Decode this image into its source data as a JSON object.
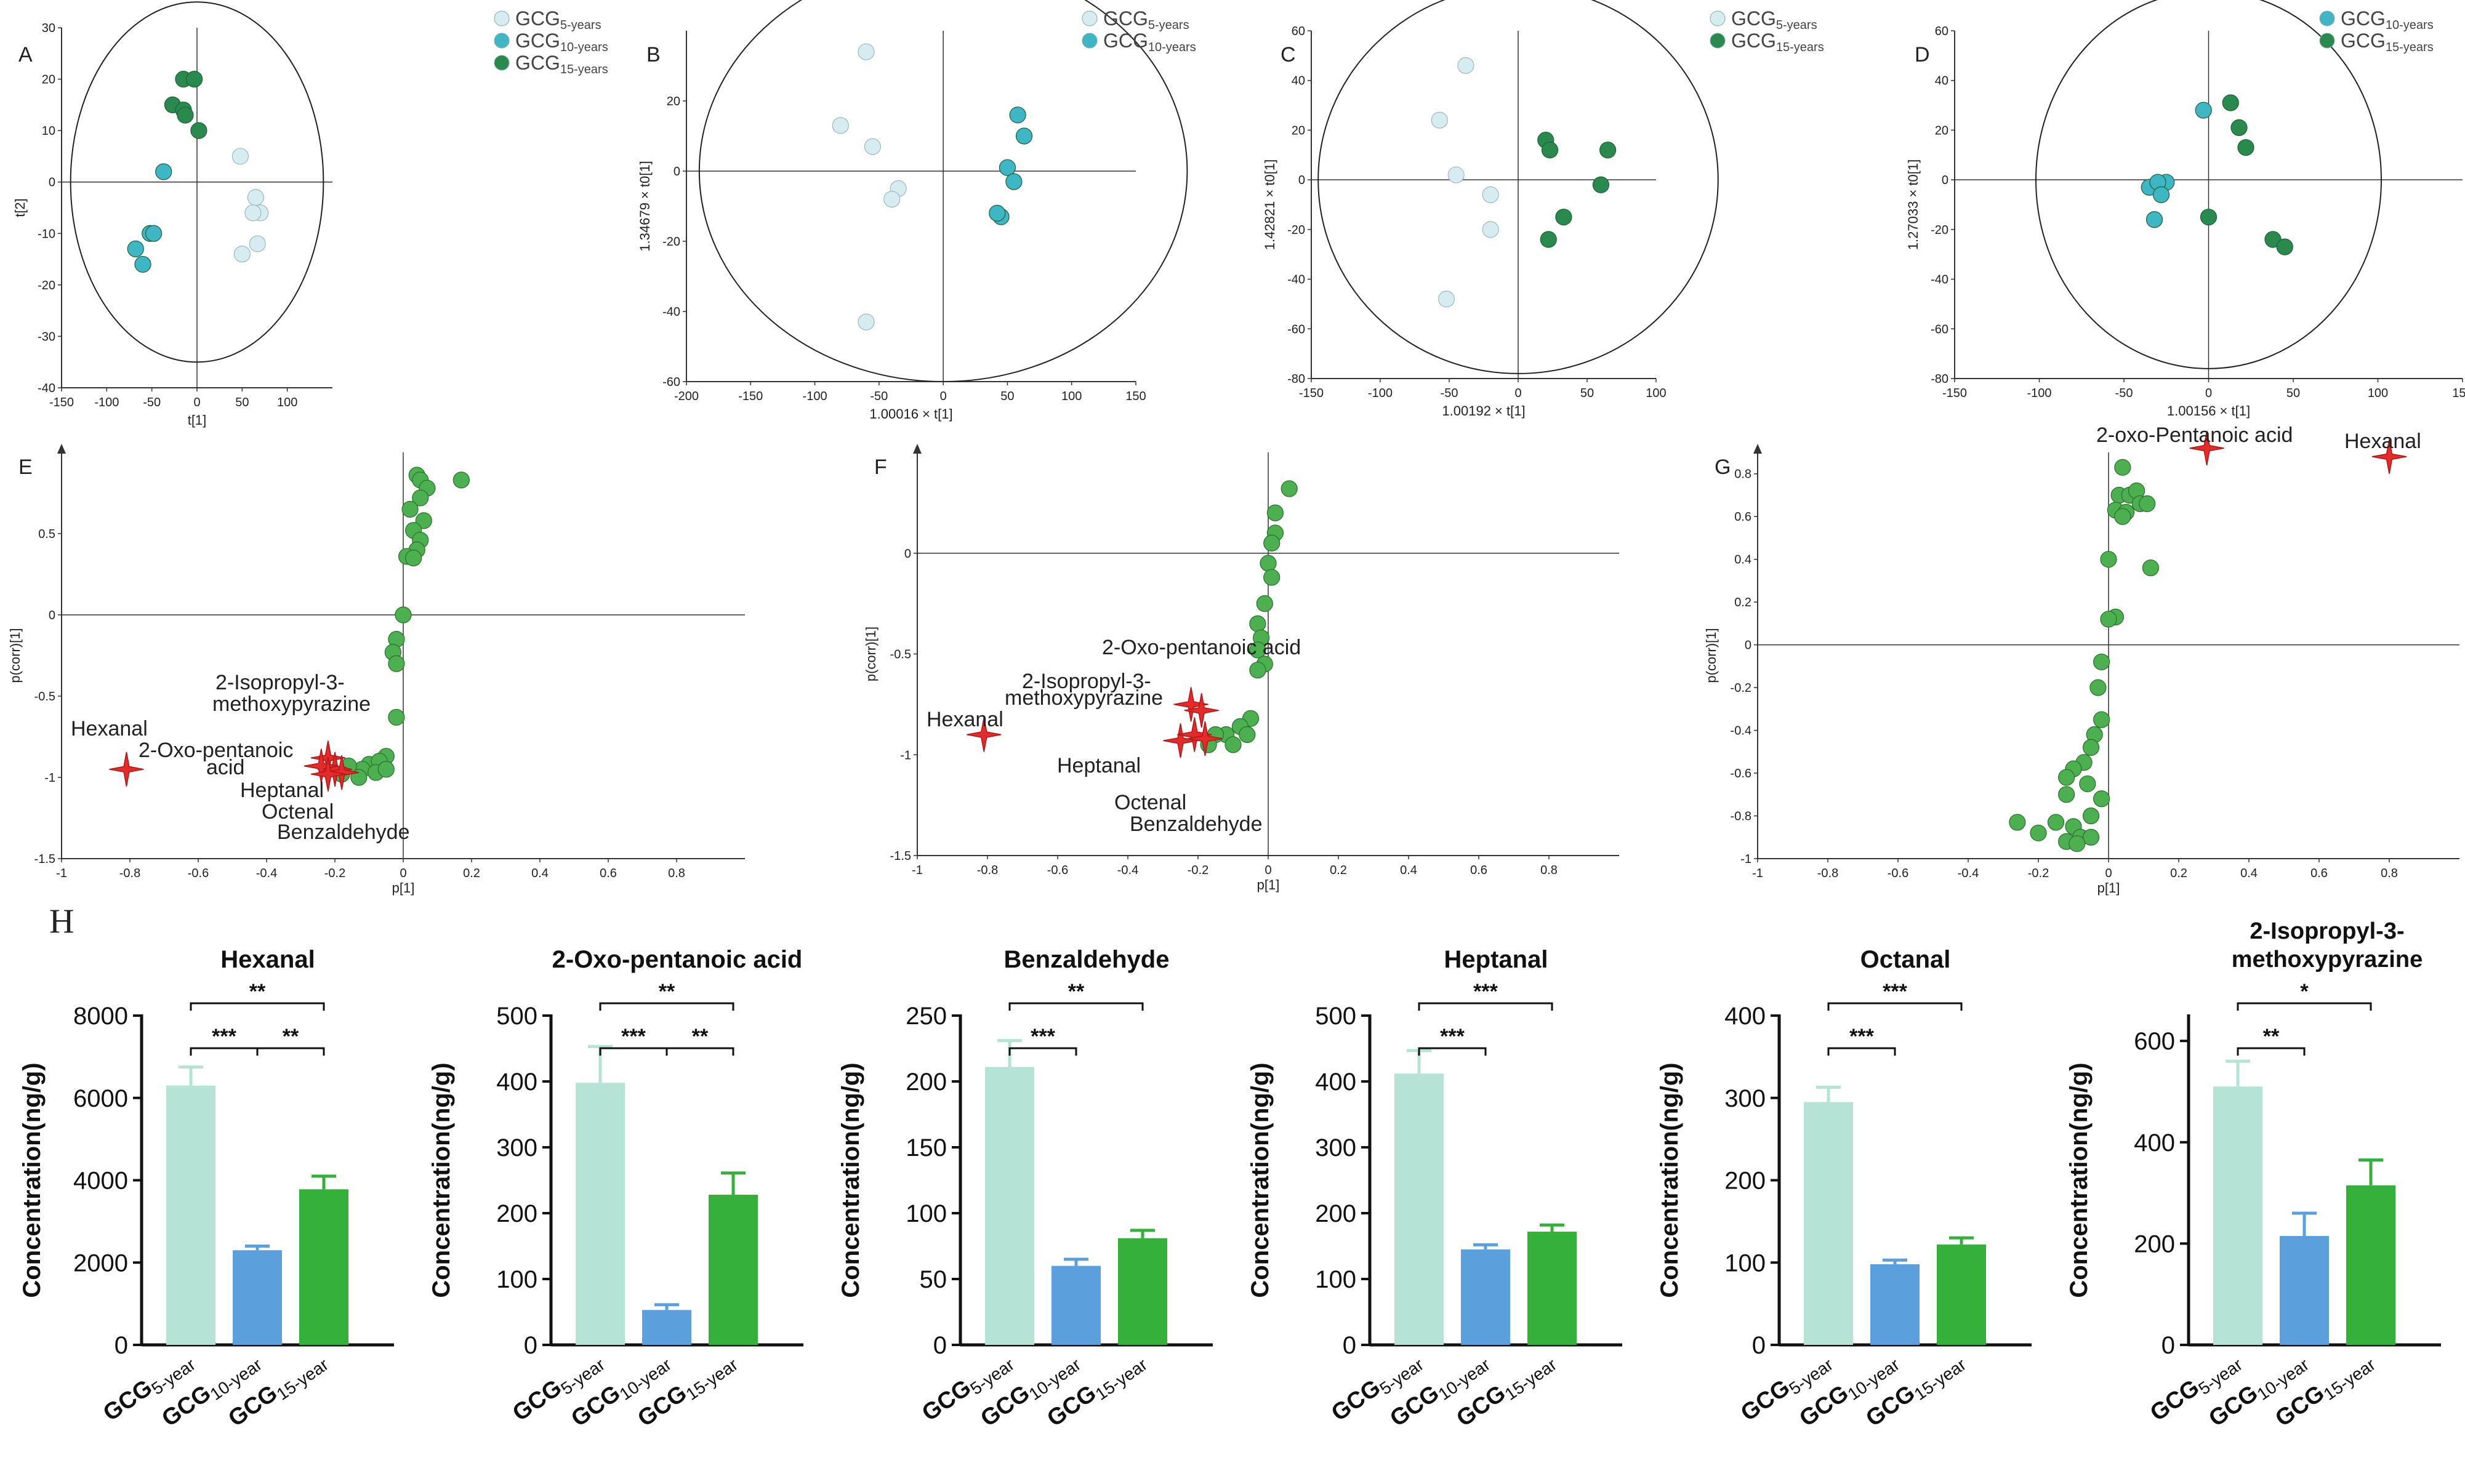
{
  "colors": {
    "y5": "#b8e3d8",
    "y5_marker": "#d6ecf1",
    "y10": "#3eb6c3",
    "y15": "#2a8a4e",
    "bar5": "#b5e3d6",
    "bar10": "#5b9fdc",
    "bar15": "#35b03a",
    "loading": "#4caf50",
    "vip": "#e52a2a"
  },
  "chart_data": [
    {
      "panel": "A",
      "type": "scatter",
      "xlabel": "t[1]",
      "ylabel": "t[2]",
      "xlim": [
        -150,
        150
      ],
      "ylim": [
        -40,
        30
      ],
      "xticks": [
        -150,
        -100,
        -50,
        0,
        50,
        100
      ],
      "yticks": [
        -40,
        -30,
        -20,
        -10,
        0,
        10,
        20,
        30
      ],
      "ellipse": {
        "rx": 140,
        "ry": 35
      },
      "legend": [
        "5-years",
        "10-years",
        "15-years"
      ],
      "series": [
        {
          "name": "GCG5-years",
          "group": "y5",
          "points": [
            [
              48,
              5
            ],
            [
              65,
              -3
            ],
            [
              70,
              -6
            ],
            [
              62,
              -6
            ],
            [
              50,
              -14
            ],
            [
              67,
              -12
            ]
          ]
        },
        {
          "name": "GCG10-years",
          "group": "y10",
          "points": [
            [
              -37,
              2
            ],
            [
              -52,
              -10
            ],
            [
              -48,
              -10
            ],
            [
              -68,
              -13
            ],
            [
              -60,
              -16
            ]
          ]
        },
        {
          "name": "GCG15-years",
          "group": "y15",
          "points": [
            [
              -27,
              15
            ],
            [
              -15,
              20
            ],
            [
              -3,
              20
            ],
            [
              -15,
              14
            ],
            [
              -13,
              13
            ],
            [
              2,
              10
            ]
          ]
        }
      ]
    },
    {
      "panel": "B",
      "type": "scatter",
      "xlabel": "1.00016 × t[1]",
      "ylabel": "1.34679 × t0[1]",
      "xlim": [
        -200,
        150
      ],
      "ylim": [
        -60,
        40
      ],
      "xticks": [
        -200,
        -150,
        -100,
        -50,
        0,
        50,
        100,
        150
      ],
      "yticks": [
        -60,
        -40,
        -20,
        0,
        20
      ],
      "ellipse": {
        "rx": 190,
        "ry": 60
      },
      "legend": [
        "5-years",
        "10-years"
      ],
      "series": [
        {
          "name": "GCG5-years",
          "group": "y5",
          "points": [
            [
              -60,
              34
            ],
            [
              -80,
              13
            ],
            [
              -55,
              7
            ],
            [
              -35,
              -5
            ],
            [
              -40,
              -8
            ],
            [
              -60,
              -43
            ]
          ]
        },
        {
          "name": "GCG10-years",
          "group": "y10",
          "points": [
            [
              58,
              16
            ],
            [
              63,
              10
            ],
            [
              50,
              1
            ],
            [
              55,
              -3
            ],
            [
              45,
              -13
            ],
            [
              42,
              -12
            ]
          ]
        }
      ]
    },
    {
      "panel": "C",
      "type": "scatter",
      "xlabel": "1.00192 × t[1]",
      "ylabel": "1.42821 × t0[1]",
      "xlim": [
        -150,
        100
      ],
      "ylim": [
        -80,
        60
      ],
      "xticks": [
        -150,
        -100,
        -50,
        0,
        50,
        100
      ],
      "yticks": [
        -80,
        -60,
        -40,
        -20,
        0,
        20,
        40,
        60
      ],
      "ellipse": {
        "rx": 145,
        "ry": 78
      },
      "legend": [
        "5-years",
        "15-years"
      ],
      "series": [
        {
          "name": "GCG5-years",
          "group": "y5",
          "points": [
            [
              -38,
              46
            ],
            [
              -57,
              24
            ],
            [
              -45,
              2
            ],
            [
              -20,
              -6
            ],
            [
              -20,
              -20
            ],
            [
              -52,
              -48
            ]
          ]
        },
        {
          "name": "GCG15-years",
          "group": "y15",
          "points": [
            [
              20,
              16
            ],
            [
              23,
              12
            ],
            [
              65,
              12
            ],
            [
              60,
              -2
            ],
            [
              33,
              -15
            ],
            [
              22,
              -24
            ]
          ]
        }
      ]
    },
    {
      "panel": "D",
      "type": "scatter",
      "xlabel": "1.00156 × t[1]",
      "ylabel": "1.27033 × t0[1]",
      "xlim": [
        -150,
        150
      ],
      "ylim": [
        -80,
        60
      ],
      "xticks": [
        -150,
        -100,
        -50,
        0,
        50,
        100,
        150
      ],
      "yticks": [
        -80,
        -60,
        -40,
        -20,
        0,
        20,
        40,
        60
      ],
      "ellipse": {
        "rx": 102,
        "ry": 76
      },
      "legend": [
        "10-years",
        "15-years"
      ],
      "series": [
        {
          "name": "GCG10-years",
          "group": "y10",
          "points": [
            [
              -3,
              28
            ],
            [
              -25,
              -1
            ],
            [
              -35,
              -3
            ],
            [
              -30,
              -1
            ],
            [
              -28,
              -6
            ],
            [
              -32,
              -16
            ]
          ]
        },
        {
          "name": "GCG15-years",
          "group": "y15",
          "points": [
            [
              13,
              31
            ],
            [
              18,
              21
            ],
            [
              22,
              13
            ],
            [
              0,
              -15
            ],
            [
              38,
              -24
            ],
            [
              45,
              -27
            ]
          ]
        }
      ]
    },
    {
      "panel": "E",
      "type": "scatter",
      "xlabel": "p[1]",
      "ylabel": "p(corr)[1]",
      "xlim": [
        -1,
        1
      ],
      "ylim": [
        -1.5,
        1
      ],
      "xticks": [
        -1,
        -0.8,
        -0.6,
        -0.4,
        -0.2,
        0,
        0.2,
        0.4,
        0.6,
        0.8
      ],
      "yticks": [
        -1.5,
        -1,
        -0.5,
        0,
        0.5
      ],
      "loadings": [
        [
          0.04,
          0.86
        ],
        [
          0.05,
          0.83
        ],
        [
          0.17,
          0.83
        ],
        [
          0.07,
          0.78
        ],
        [
          0.05,
          0.72
        ],
        [
          0.02,
          0.65
        ],
        [
          0.06,
          0.58
        ],
        [
          0.03,
          0.52
        ],
        [
          0.05,
          0.46
        ],
        [
          0.04,
          0.4
        ],
        [
          0.01,
          0.36
        ],
        [
          0.03,
          0.35
        ],
        [
          0.0,
          0.0
        ],
        [
          -0.02,
          -0.15
        ],
        [
          -0.03,
          -0.23
        ],
        [
          -0.02,
          -0.3
        ],
        [
          -0.02,
          -0.63
        ],
        [
          -0.05,
          -0.87
        ],
        [
          -0.1,
          -0.92
        ],
        [
          -0.07,
          -0.9
        ],
        [
          -0.12,
          -0.95
        ],
        [
          -0.08,
          -0.97
        ],
        [
          -0.13,
          -1.0
        ],
        [
          -0.05,
          -0.95
        ],
        [
          -0.16,
          -0.93
        ],
        [
          -0.18,
          -0.98
        ]
      ],
      "vip": [
        [
          -0.81,
          -0.95
        ],
        [
          -0.22,
          -0.88
        ],
        [
          -0.2,
          -0.95
        ],
        [
          -0.24,
          -0.93
        ],
        [
          -0.18,
          -0.97
        ],
        [
          -0.22,
          -0.98
        ]
      ],
      "annotations": [
        "Hexanal",
        "2-Oxo-pentanoic",
        "acid",
        "2-Isopropyl-3-",
        "methoxypyrazine",
        "Heptanal",
        "Octenal",
        "Benzaldehyde"
      ]
    },
    {
      "panel": "F",
      "type": "scatter",
      "xlabel": "p[1]",
      "ylabel": "p(corr)[1]",
      "xlim": [
        -1,
        1
      ],
      "ylim": [
        -1.5,
        0.5
      ],
      "xticks": [
        -1,
        -0.8,
        -0.6,
        -0.4,
        -0.2,
        0,
        0.2,
        0.4,
        0.6,
        0.8
      ],
      "yticks": [
        -1.5,
        -1,
        -0.5,
        0
      ],
      "loadings": [
        [
          0.06,
          0.32
        ],
        [
          0.02,
          0.2
        ],
        [
          0.02,
          0.1
        ],
        [
          0.01,
          0.05
        ],
        [
          0.0,
          -0.05
        ],
        [
          0.01,
          -0.12
        ],
        [
          -0.01,
          -0.25
        ],
        [
          -0.03,
          -0.35
        ],
        [
          -0.02,
          -0.42
        ],
        [
          -0.03,
          -0.48
        ],
        [
          -0.01,
          -0.55
        ],
        [
          -0.03,
          -0.58
        ],
        [
          -0.05,
          -0.82
        ],
        [
          -0.08,
          -0.86
        ],
        [
          -0.12,
          -0.9
        ],
        [
          -0.1,
          -0.95
        ],
        [
          -0.15,
          -0.9
        ],
        [
          -0.17,
          -0.95
        ],
        [
          -0.06,
          -0.9
        ]
      ],
      "vip": [
        [
          -0.81,
          -0.9
        ],
        [
          -0.22,
          -0.75
        ],
        [
          -0.19,
          -0.78
        ],
        [
          -0.25,
          -0.93
        ],
        [
          -0.21,
          -0.9
        ],
        [
          -0.18,
          -0.92
        ]
      ],
      "annotations": [
        "Hexanal",
        "2-Oxo-pentanoic acid",
        "2-Isopropyl-3-",
        "methoxypyrazine",
        "Heptanal",
        "Octenal",
        "Benzaldehyde"
      ]
    },
    {
      "panel": "G",
      "type": "scatter",
      "xlabel": "p[1]",
      "ylabel": "p(corr)[1]",
      "xlim": [
        -1,
        1
      ],
      "ylim": [
        -1,
        0.9
      ],
      "xticks": [
        -1,
        -0.8,
        -0.6,
        -0.4,
        -0.2,
        0,
        0.2,
        0.4,
        0.6,
        0.8
      ],
      "yticks": [
        -1,
        -0.8,
        -0.6,
        -0.4,
        -0.2,
        0,
        0.2,
        0.4,
        0.6,
        0.8
      ],
      "loadings": [
        [
          0.04,
          0.83
        ],
        [
          0.03,
          0.7
        ],
        [
          0.06,
          0.7
        ],
        [
          0.08,
          0.72
        ],
        [
          0.09,
          0.66
        ],
        [
          0.02,
          0.63
        ],
        [
          0.05,
          0.62
        ],
        [
          0.11,
          0.66
        ],
        [
          0.04,
          0.6
        ],
        [
          0.0,
          0.4
        ],
        [
          0.12,
          0.36
        ],
        [
          0.02,
          0.13
        ],
        [
          0.0,
          0.12
        ],
        [
          -0.02,
          -0.08
        ],
        [
          -0.03,
          -0.2
        ],
        [
          -0.02,
          -0.35
        ],
        [
          -0.04,
          -0.42
        ],
        [
          -0.05,
          -0.48
        ],
        [
          -0.07,
          -0.55
        ],
        [
          -0.1,
          -0.58
        ],
        [
          -0.12,
          -0.62
        ],
        [
          -0.06,
          -0.65
        ],
        [
          -0.12,
          -0.7
        ],
        [
          -0.02,
          -0.72
        ],
        [
          -0.05,
          -0.8
        ],
        [
          -0.1,
          -0.85
        ],
        [
          -0.15,
          -0.83
        ],
        [
          -0.08,
          -0.9
        ],
        [
          -0.05,
          -0.9
        ],
        [
          -0.2,
          -0.88
        ],
        [
          -0.26,
          -0.83
        ],
        [
          -0.12,
          -0.92
        ],
        [
          -0.09,
          -0.93
        ]
      ],
      "vip": [
        [
          0.28,
          0.92
        ],
        [
          0.8,
          0.88
        ]
      ],
      "annotations": [
        "2-oxo-Pentanoic acid",
        "Hexanal"
      ]
    },
    {
      "panel": "H",
      "type": "bar",
      "title": "Hexanal",
      "ylabel": "Concentration(ng/g)",
      "categories": [
        "5-year",
        "10-year",
        "15-year"
      ],
      "values": [
        6300,
        2300,
        3780
      ],
      "errors": [
        450,
        100,
        320
      ],
      "ylim": [
        0,
        8000
      ],
      "yticks": [
        0,
        2000,
        4000,
        6000,
        8000
      ],
      "sig": [
        {
          "from": 0,
          "to": 2,
          "label": "**"
        },
        {
          "from": 0,
          "to": 1,
          "label": "***"
        },
        {
          "from": 1,
          "to": 2,
          "label": "**"
        }
      ]
    },
    {
      "panel": "H",
      "type": "bar",
      "title": "2-Oxo-pentanoic acid",
      "ylabel": "Concentration(ng/g)",
      "categories": [
        "5-year",
        "10-year",
        "15-year"
      ],
      "values": [
        398,
        53,
        228
      ],
      "errors": [
        55,
        8,
        33
      ],
      "ylim": [
        0,
        500
      ],
      "yticks": [
        0,
        100,
        200,
        300,
        400,
        500
      ],
      "sig": [
        {
          "from": 0,
          "to": 2,
          "label": "**"
        },
        {
          "from": 0,
          "to": 1,
          "label": "***"
        },
        {
          "from": 1,
          "to": 2,
          "label": "**"
        }
      ]
    },
    {
      "panel": "H",
      "type": "bar",
      "title": "Benzaldehyde",
      "ylabel": "Concentration(ng/g)",
      "categories": [
        "5-year",
        "10-year",
        "15-year"
      ],
      "values": [
        211,
        60,
        81
      ],
      "errors": [
        20,
        5,
        6
      ],
      "ylim": [
        0,
        250
      ],
      "yticks": [
        0,
        50,
        100,
        150,
        200,
        250
      ],
      "sig": [
        {
          "from": 0,
          "to": 2,
          "label": "**"
        },
        {
          "from": 0,
          "to": 1,
          "label": "***"
        }
      ]
    },
    {
      "panel": "H",
      "type": "bar",
      "title": "Heptanal",
      "ylabel": "Concentration(ng/g)",
      "categories": [
        "5-year",
        "10-year",
        "15-year"
      ],
      "values": [
        412,
        145,
        172
      ],
      "errors": [
        35,
        7,
        10
      ],
      "ylim": [
        0,
        500
      ],
      "yticks": [
        0,
        100,
        200,
        300,
        400,
        500
      ],
      "sig": [
        {
          "from": 0,
          "to": 2,
          "label": "***"
        },
        {
          "from": 0,
          "to": 1,
          "label": "***"
        }
      ]
    },
    {
      "panel": "H",
      "type": "bar",
      "title": "Octanal",
      "ylabel": "Concentration(ng/g)",
      "categories": [
        "5-year",
        "10-year",
        "15-year"
      ],
      "values": [
        295,
        98,
        122
      ],
      "errors": [
        18,
        5,
        8
      ],
      "ylim": [
        0,
        400
      ],
      "yticks": [
        0,
        100,
        200,
        300,
        400
      ],
      "sig": [
        {
          "from": 0,
          "to": 2,
          "label": "***"
        },
        {
          "from": 0,
          "to": 1,
          "label": "***"
        }
      ]
    },
    {
      "panel": "H",
      "type": "bar",
      "title": "2-Isopropyl-3-methoxypyrazine",
      "title_lines": [
        "2-Isopropyl-3-",
        "methoxypyrazine"
      ],
      "ylabel": "Concentration(ng/g)",
      "categories": [
        "5-year",
        "10-year",
        "15-year"
      ],
      "values": [
        510,
        215,
        315
      ],
      "errors": [
        50,
        45,
        50
      ],
      "ylim": [
        0,
        650
      ],
      "yticks": [
        0,
        200,
        400,
        600
      ],
      "sig": [
        {
          "from": 0,
          "to": 2,
          "label": "*"
        },
        {
          "from": 0,
          "to": 1,
          "label": "**"
        }
      ]
    }
  ]
}
